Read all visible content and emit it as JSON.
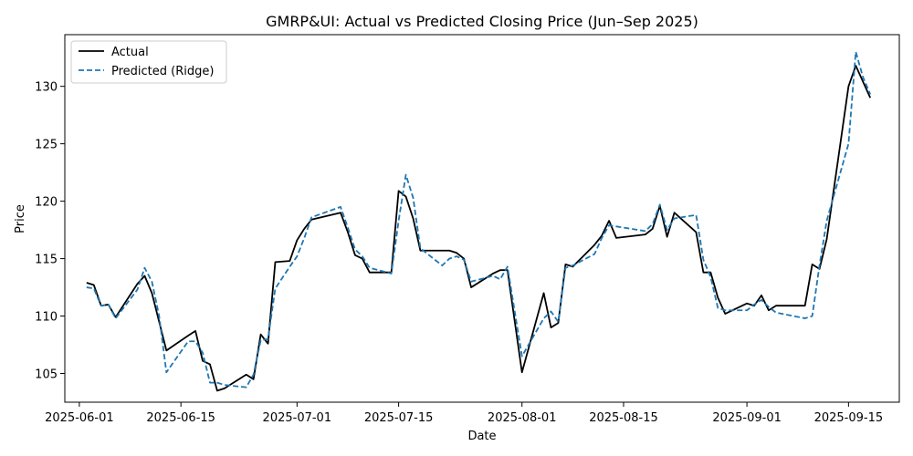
{
  "chart_data": {
    "type": "line",
    "title": "GMRP&UI: Actual vs Predicted Closing Price (Jun–Sep 2025)",
    "xlabel": "Date",
    "ylabel": "Price",
    "x_tick_labels": [
      "2025-06-01",
      "2025-06-15",
      "2025-07-01",
      "2025-07-15",
      "2025-08-01",
      "2025-08-15",
      "2025-09-01",
      "2025-09-15"
    ],
    "y_ticks": [
      105,
      110,
      115,
      120,
      125,
      130
    ],
    "xlim": [
      "2025-05-30",
      "2025-09-22"
    ],
    "ylim": [
      102.5,
      134.5
    ],
    "legend_position": "top-left",
    "grid": false,
    "series": [
      {
        "name": "Actual",
        "color": "#000000",
        "style": "solid",
        "points": [
          [
            "2025-06-02",
            112.9
          ],
          [
            "2025-06-03",
            112.7
          ],
          [
            "2025-06-04",
            110.9
          ],
          [
            "2025-06-05",
            111.0
          ],
          [
            "2025-06-06",
            109.9
          ],
          [
            "2025-06-09",
            112.8
          ],
          [
            "2025-06-10",
            113.5
          ],
          [
            "2025-06-11",
            112.0
          ],
          [
            "2025-06-12",
            109.5
          ],
          [
            "2025-06-13",
            107.0
          ],
          [
            "2025-06-16",
            108.3
          ],
          [
            "2025-06-17",
            108.7
          ],
          [
            "2025-06-18",
            106.1
          ],
          [
            "2025-06-19",
            105.8
          ],
          [
            "2025-06-20",
            103.5
          ],
          [
            "2025-06-21",
            103.7
          ],
          [
            "2025-06-24",
            104.9
          ],
          [
            "2025-06-25",
            104.5
          ],
          [
            "2025-06-26",
            108.4
          ],
          [
            "2025-06-27",
            107.6
          ],
          [
            "2025-06-28",
            114.7
          ],
          [
            "2025-06-30",
            114.8
          ],
          [
            "2025-07-01",
            116.6
          ],
          [
            "2025-07-02",
            117.6
          ],
          [
            "2025-07-03",
            118.4
          ],
          [
            "2025-07-07",
            119.0
          ],
          [
            "2025-07-08",
            117.3
          ],
          [
            "2025-07-09",
            115.3
          ],
          [
            "2025-07-10",
            115.0
          ],
          [
            "2025-07-11",
            113.8
          ],
          [
            "2025-07-14",
            113.8
          ],
          [
            "2025-07-15",
            120.9
          ],
          [
            "2025-07-16",
            120.4
          ],
          [
            "2025-07-17",
            118.5
          ],
          [
            "2025-07-18",
            115.7
          ],
          [
            "2025-07-21",
            115.7
          ],
          [
            "2025-07-22",
            115.7
          ],
          [
            "2025-07-23",
            115.5
          ],
          [
            "2025-07-24",
            115.0
          ],
          [
            "2025-07-25",
            112.5
          ],
          [
            "2025-07-28",
            113.7
          ],
          [
            "2025-07-29",
            114.0
          ],
          [
            "2025-07-30",
            114.0
          ],
          [
            "2025-08-01",
            105.1
          ],
          [
            "2025-08-04",
            112.0
          ],
          [
            "2025-08-05",
            109.0
          ],
          [
            "2025-08-06",
            109.4
          ],
          [
            "2025-08-07",
            114.5
          ],
          [
            "2025-08-08",
            114.3
          ],
          [
            "2025-08-11",
            116.2
          ],
          [
            "2025-08-12",
            117.0
          ],
          [
            "2025-08-13",
            118.3
          ],
          [
            "2025-08-14",
            116.8
          ],
          [
            "2025-08-18",
            117.1
          ],
          [
            "2025-08-19",
            117.6
          ],
          [
            "2025-08-20",
            119.6
          ],
          [
            "2025-08-21",
            116.9
          ],
          [
            "2025-08-22",
            119.0
          ],
          [
            "2025-08-25",
            117.3
          ],
          [
            "2025-08-26",
            113.8
          ],
          [
            "2025-08-27",
            113.8
          ],
          [
            "2025-08-28",
            111.6
          ],
          [
            "2025-08-29",
            110.2
          ],
          [
            "2025-09-01",
            111.1
          ],
          [
            "2025-09-02",
            110.9
          ],
          [
            "2025-09-03",
            111.8
          ],
          [
            "2025-09-04",
            110.5
          ],
          [
            "2025-09-05",
            110.9
          ],
          [
            "2025-09-09",
            110.9
          ],
          [
            "2025-09-10",
            114.5
          ],
          [
            "2025-09-11",
            114.1
          ],
          [
            "2025-09-12",
            116.7
          ],
          [
            "2025-09-15",
            130.0
          ],
          [
            "2025-09-16",
            131.8
          ],
          [
            "2025-09-17",
            130.4
          ],
          [
            "2025-09-18",
            129.0
          ]
        ]
      },
      {
        "name": "Predicted (Ridge)",
        "color": "#1f77b4",
        "style": "dashed",
        "points": [
          [
            "2025-06-02",
            112.5
          ],
          [
            "2025-06-03",
            112.4
          ],
          [
            "2025-06-04",
            110.9
          ],
          [
            "2025-06-05",
            111.0
          ],
          [
            "2025-06-06",
            109.8
          ],
          [
            "2025-06-09",
            112.3
          ],
          [
            "2025-06-10",
            114.2
          ],
          [
            "2025-06-11",
            113.0
          ],
          [
            "2025-06-12",
            110.0
          ],
          [
            "2025-06-13",
            105.1
          ],
          [
            "2025-06-16",
            107.8
          ],
          [
            "2025-06-17",
            107.8
          ],
          [
            "2025-06-18",
            106.8
          ],
          [
            "2025-06-19",
            104.2
          ],
          [
            "2025-06-20",
            104.2
          ],
          [
            "2025-06-21",
            104.0
          ],
          [
            "2025-06-24",
            103.8
          ],
          [
            "2025-06-25",
            104.9
          ],
          [
            "2025-06-26",
            107.9
          ],
          [
            "2025-06-27",
            108.0
          ],
          [
            "2025-06-28",
            112.4
          ],
          [
            "2025-06-30",
            114.3
          ],
          [
            "2025-07-01",
            115.2
          ],
          [
            "2025-07-02",
            116.8
          ],
          [
            "2025-07-03",
            118.6
          ],
          [
            "2025-07-07",
            119.5
          ],
          [
            "2025-07-08",
            117.7
          ],
          [
            "2025-07-09",
            115.8
          ],
          [
            "2025-07-10",
            115.2
          ],
          [
            "2025-07-11",
            114.2
          ],
          [
            "2025-07-14",
            113.7
          ],
          [
            "2025-07-15",
            118.3
          ],
          [
            "2025-07-16",
            122.3
          ],
          [
            "2025-07-17",
            120.3
          ],
          [
            "2025-07-18",
            115.9
          ],
          [
            "2025-07-21",
            114.4
          ],
          [
            "2025-07-22",
            115.0
          ],
          [
            "2025-07-23",
            115.2
          ],
          [
            "2025-07-24",
            114.9
          ],
          [
            "2025-07-25",
            113.0
          ],
          [
            "2025-07-28",
            113.5
          ],
          [
            "2025-07-29",
            113.2
          ],
          [
            "2025-07-30",
            114.3
          ],
          [
            "2025-08-01",
            106.5
          ],
          [
            "2025-08-04",
            109.8
          ],
          [
            "2025-08-05",
            110.4
          ],
          [
            "2025-08-06",
            109.5
          ],
          [
            "2025-08-07",
            114.2
          ],
          [
            "2025-08-08",
            114.4
          ],
          [
            "2025-08-11",
            115.4
          ],
          [
            "2025-08-12",
            116.8
          ],
          [
            "2025-08-13",
            117.9
          ],
          [
            "2025-08-14",
            117.8
          ],
          [
            "2025-08-18",
            117.4
          ],
          [
            "2025-08-19",
            118.0
          ],
          [
            "2025-08-20",
            119.7
          ],
          [
            "2025-08-21",
            117.5
          ],
          [
            "2025-08-22",
            118.5
          ],
          [
            "2025-08-25",
            118.8
          ],
          [
            "2025-08-26",
            114.9
          ],
          [
            "2025-08-27",
            113.4
          ],
          [
            "2025-08-28",
            110.7
          ],
          [
            "2025-08-29",
            110.5
          ],
          [
            "2025-09-01",
            110.5
          ],
          [
            "2025-09-02",
            111.0
          ],
          [
            "2025-09-03",
            111.4
          ],
          [
            "2025-09-04",
            110.8
          ],
          [
            "2025-09-05",
            110.3
          ],
          [
            "2025-09-09",
            109.8
          ],
          [
            "2025-09-10",
            110.0
          ],
          [
            "2025-09-11",
            114.4
          ],
          [
            "2025-09-12",
            118.3
          ],
          [
            "2025-09-15",
            125.0
          ],
          [
            "2025-09-16",
            133.0
          ],
          [
            "2025-09-17",
            130.8
          ],
          [
            "2025-09-18",
            129.3
          ]
        ]
      }
    ]
  }
}
